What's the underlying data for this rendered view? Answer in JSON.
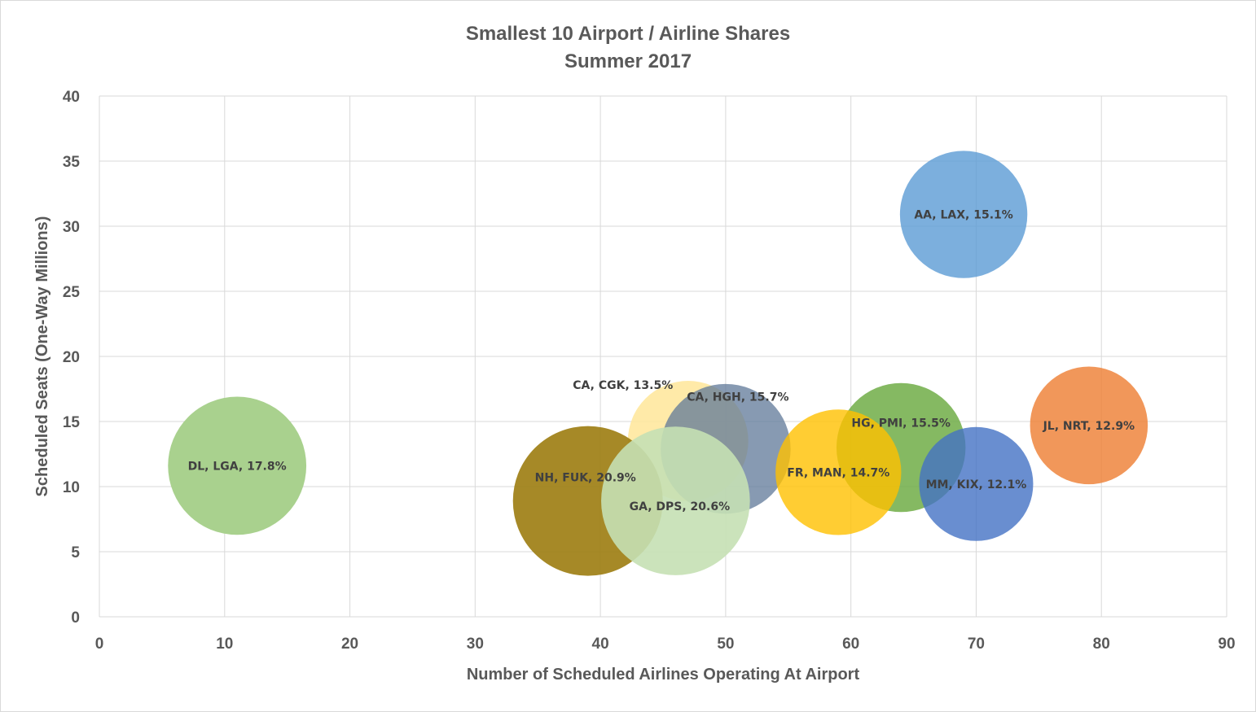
{
  "chart_data": {
    "type": "bubble",
    "title": "Smallest 10 Airport / Airline Shares",
    "subtitle": "Summer 2017",
    "xlabel": "Number of Scheduled Airlines Operating At Airport",
    "ylabel": "Scheduled Seats (One-Way Millions)",
    "xlim": [
      0,
      90
    ],
    "ylim": [
      0,
      40
    ],
    "x_ticks": [
      "0",
      "10",
      "20",
      "30",
      "40",
      "50",
      "60",
      "70",
      "80",
      "90"
    ],
    "y_ticks": [
      "0",
      "5",
      "10",
      "15",
      "20",
      "25",
      "30",
      "35",
      "40"
    ],
    "grid": true,
    "points": [
      {
        "label": "CA, CGK, 13.5%",
        "x": 47,
        "y": 13.5,
        "share": 13.5,
        "color": "#FFE699",
        "opacity": 0.85
      },
      {
        "label": "CA, HGH, 15.7%",
        "x": 50,
        "y": 12.9,
        "share": 15.7,
        "color": "#5F7898",
        "opacity": 0.75
      },
      {
        "label": "HG, PMI, 15.5%",
        "x": 64,
        "y": 13.0,
        "share": 15.5,
        "color": "#70AD47",
        "opacity": 0.85
      },
      {
        "label": "FR, MAN, 14.7%",
        "x": 59,
        "y": 11.1,
        "share": 14.7,
        "color": "#FFC000",
        "opacity": 0.8
      },
      {
        "label": "MM, KIX,  12.1%",
        "x": 70,
        "y": 10.2,
        "share": 12.1,
        "color": "#4472C4",
        "opacity": 0.8
      },
      {
        "label": "JL, NRT, 12.9%",
        "x": 79,
        "y": 14.7,
        "share": 12.9,
        "color": "#ED7D31",
        "opacity": 0.8
      },
      {
        "label": "AA, LAX, 15.1%",
        "x": 69,
        "y": 30.9,
        "share": 15.1,
        "color": "#5B9BD5",
        "opacity": 0.8
      },
      {
        "label": "DL, LGA, 17.8%",
        "x": 11,
        "y": 11.6,
        "share": 17.8,
        "color": "#A9D18E",
        "opacity": 1.0
      },
      {
        "label": "NH, FUK, 20.9%",
        "x": 39,
        "y": 8.9,
        "share": 20.9,
        "color": "#9C7C0F",
        "opacity": 0.9
      },
      {
        "label": "GA, DPS, 20.6%",
        "x": 46,
        "y": 8.9,
        "share": 20.6,
        "color": "#C5E0B4",
        "opacity": 0.9
      }
    ]
  }
}
